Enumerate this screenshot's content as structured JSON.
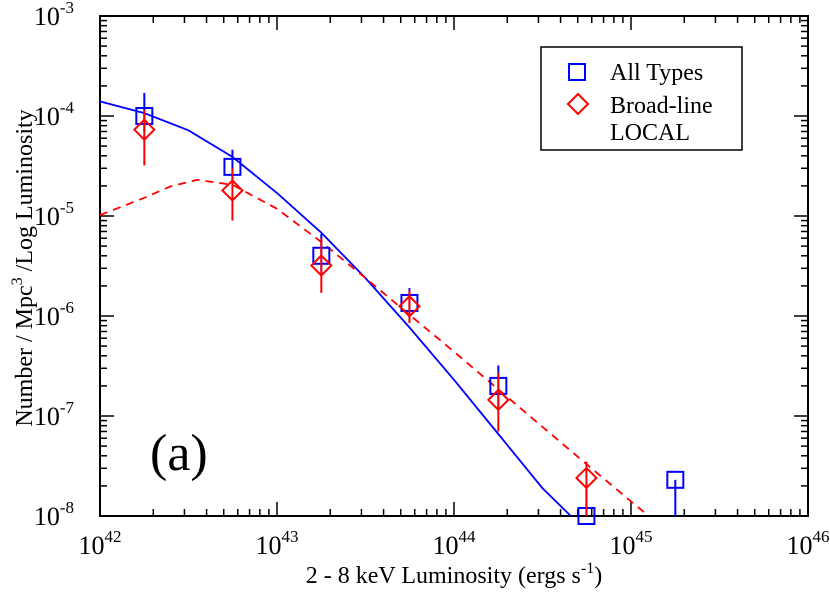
{
  "chart_data": {
    "type": "scatter",
    "xlabel": "2 - 8 keV Luminosity  (ergs s",
    "xlabel_sup": "-1",
    "xlabel_end": ")",
    "ylabel_a": "Number / Mpc",
    "ylabel_sup": "3",
    "ylabel_b": " /Log Luminosity",
    "xscale": "log",
    "yscale": "log",
    "xlim": [
      1e+42,
      1e+46
    ],
    "ylim": [
      1e-08,
      0.001
    ],
    "x_ticks": [
      {
        "value": 1e+42,
        "base": "10",
        "exp": "42"
      },
      {
        "value": 1e+43,
        "base": "10",
        "exp": "43"
      },
      {
        "value": 1e+44,
        "base": "10",
        "exp": "44"
      },
      {
        "value": 1e+45,
        "base": "10",
        "exp": "45"
      },
      {
        "value": 1e+46,
        "base": "10",
        "exp": "46"
      }
    ],
    "y_ticks": [
      {
        "value": 1e-08,
        "base": "10",
        "exp": "-8"
      },
      {
        "value": 1e-07,
        "base": "10",
        "exp": "-7"
      },
      {
        "value": 1e-06,
        "base": "10",
        "exp": "-6"
      },
      {
        "value": 1e-05,
        "base": "10",
        "exp": "-5"
      },
      {
        "value": 0.0001,
        "base": "10",
        "exp": "-4"
      },
      {
        "value": 0.001,
        "base": "10",
        "exp": "-3"
      }
    ],
    "annotation": "(a)",
    "legend_position": "top-right",
    "legend_extra": "LOCAL",
    "grid": false,
    "series": [
      {
        "name": "All Types",
        "marker": "square",
        "color": "#0000ff",
        "points": [
          {
            "x": 1.78e+42,
            "y": 0.0001,
            "err_hi": 0.00017,
            "err_lo": 7e-05
          },
          {
            "x": 5.6e+42,
            "y": 3.1e-05,
            "err_hi": 4.6e-05,
            "err_lo": 2.1e-05
          },
          {
            "x": 1.78e+43,
            "y": 4e-06,
            "err_hi": 6.6e-06,
            "err_lo": 2.5e-06
          },
          {
            "x": 5.6e+43,
            "y": 1.35e-06,
            "err_hi": 1.9e-06,
            "err_lo": 9.6e-07
          },
          {
            "x": 1.78e+44,
            "y": 2e-07,
            "err_hi": 3.2e-07,
            "err_lo": 1.2e-07
          },
          {
            "x": 5.6e+44,
            "y": 1e-08,
            "err_hi": 1.9e-08,
            "err_lo": 1e-08
          },
          {
            "x": 1.78e+45,
            "y": 2.3e-08,
            "err_hi": 2.3e-08,
            "err_lo": 1e-08
          }
        ]
      },
      {
        "name": "Broad-line",
        "marker": "diamond",
        "color": "#ff0000",
        "points": [
          {
            "x": 1.78e+42,
            "y": 7.3e-05,
            "err_hi": 0.000115,
            "err_lo": 3.2e-05
          },
          {
            "x": 5.6e+42,
            "y": 1.8e-05,
            "err_hi": 3e-05,
            "err_lo": 9e-06
          },
          {
            "x": 1.78e+43,
            "y": 3.2e-06,
            "err_hi": 6e-06,
            "err_lo": 1.7e-06
          },
          {
            "x": 5.6e+43,
            "y": 1.25e-06,
            "err_hi": 1.8e-06,
            "err_lo": 8.5e-07
          },
          {
            "x": 1.78e+44,
            "y": 1.45e-07,
            "err_hi": 2.7e-07,
            "err_lo": 7e-08
          },
          {
            "x": 5.6e+44,
            "y": 2.4e-08,
            "err_hi": 3.5e-08,
            "err_lo": 1e-08
          }
        ]
      }
    ],
    "curves": [
      {
        "name": "All Types fit",
        "color": "#0000ff",
        "dash": "none",
        "points": [
          [
            1e+42,
            0.00014
          ],
          [
            1.78e+42,
            0.000107
          ],
          [
            3.16e+42,
            7.2e-05
          ],
          [
            5.6e+42,
            3.9e-05
          ],
          [
            1e+43,
            1.7e-05
          ],
          [
            1.78e+43,
            6.8e-06
          ],
          [
            3.16e+43,
            2.4e-06
          ],
          [
            5.6e+43,
            7.7e-07
          ],
          [
            1e+44,
            2.3e-07
          ],
          [
            1.78e+44,
            6.6e-08
          ],
          [
            3.16e+44,
            1.9e-08
          ],
          [
            4.57e+44,
            1e-08
          ]
        ]
      },
      {
        "name": "Broad-line fit",
        "color": "#ff0000",
        "dash": "8,6",
        "points": [
          [
            1e+42,
            1.02e-05
          ],
          [
            1.78e+42,
            1.52e-05
          ],
          [
            2.51e+42,
            1.98e-05
          ],
          [
            3.55e+42,
            2.3e-05
          ],
          [
            5.6e+42,
            2.05e-05
          ],
          [
            1e+43,
            1.18e-05
          ],
          [
            1.78e+43,
            5.5e-06
          ],
          [
            3.16e+43,
            2.4e-06
          ],
          [
            5.6e+43,
            1.03e-06
          ],
          [
            1e+44,
            4.4e-07
          ],
          [
            1.78e+44,
            1.85e-07
          ],
          [
            3.16e+44,
            7.8e-08
          ],
          [
            5.6e+44,
            3.3e-08
          ],
          [
            1e+45,
            1.4e-08
          ],
          [
            1.26e+45,
            1e-08
          ]
        ]
      }
    ]
  }
}
